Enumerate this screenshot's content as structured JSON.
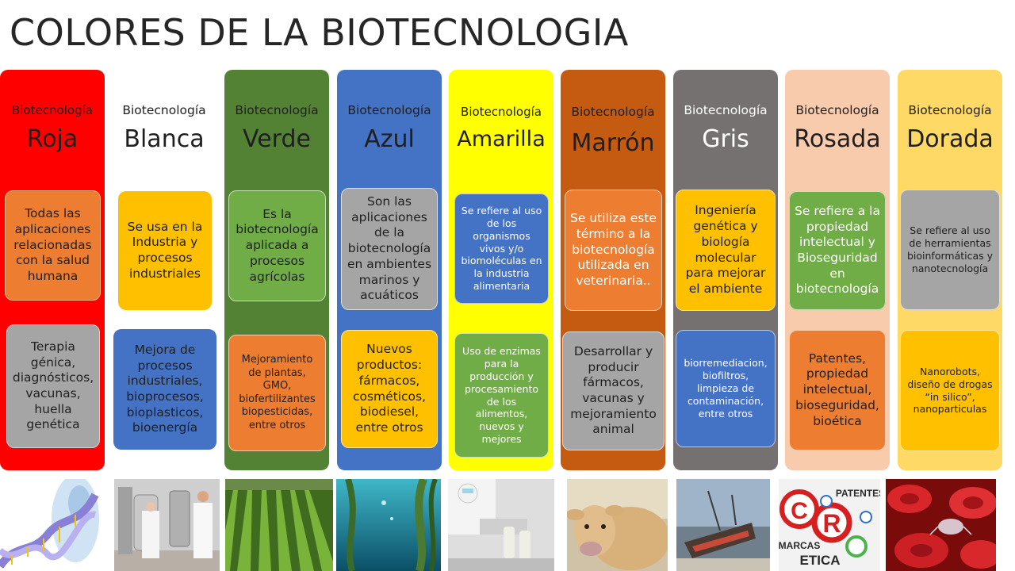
{
  "title": "COLORES DE LA BIOTECNOLOGIA",
  "colors": {
    "roja": "#ff0000",
    "blanca": "#ffffff",
    "verde": "#548235",
    "azul": "#4472c4",
    "amarilla": "#ffff00",
    "marron": "#c55a11",
    "gris": "#767171",
    "rosada": "#f8cbad",
    "dorada": "#ffd966",
    "box_orange": "#ed7d31",
    "box_gray": "#a5a5a5",
    "box_gold": "#ffc000",
    "box_blue": "#4472c4",
    "box_green": "#70ad47"
  },
  "columns": [
    {
      "subtitle": "Biotecnología",
      "name": "Roja",
      "box1": "Todas las aplicaciones relacionadas con la salud humana",
      "box2": "Terapia génica, diagnósticos, vacunas, huella genética",
      "image": "dna-human-body-image"
    },
    {
      "subtitle": "Biotecnología",
      "name": "Blanca",
      "box1": "Se usa en la Industria y procesos industriales",
      "box2": "Mejora de procesos industriales, bioprocesos, bioplasticos, bioenergía",
      "image": "industrial-lab-image"
    },
    {
      "subtitle": "Biotecnología",
      "name": "Verde",
      "box1": "Es la biotecnología aplicada a procesos agrícolas",
      "box2": "Mejoramiento de plantas, GMO, biofertilizantes biopesticidas, entre otros",
      "image": "crop-field-image"
    },
    {
      "subtitle": "Biotecnología",
      "name": "Azul",
      "box1": "Son las aplicaciones de la biotecnología en ambientes marinos y acuáticos",
      "box2": "Nuevos productos: fármacos, cosméticos, biodiesel, entre otros",
      "image": "kelp-forest-image"
    },
    {
      "subtitle": "Biotecnología",
      "name": "Amarilla",
      "box1": "Se refiere al uso de los organismos vivos y/o biomoléculas en la industria alimentaria",
      "box2": "Uso de enzimas para la producción y procesamiento de los alimentos, nuevos y mejores",
      "image": "food-lab-image"
    },
    {
      "subtitle": "Biotecnología",
      "name": "Marrón",
      "box1": "Se utiliza este término a la biotecnología utilizada en veterinaria..",
      "box2": "Desarrollar y producir fármacos, vacunas y mejoramiento animal",
      "image": "cow-image"
    },
    {
      "subtitle": "Biotecnología",
      "name": "Gris",
      "box1": "Ingeniería genética y biología molecular para mejorar el ambiente",
      "box2": "biorremediacion, biofiltros, limpieza de contaminación, entre otros",
      "image": "shipwreck-image"
    },
    {
      "subtitle": "Biotecnología",
      "name": "Rosada",
      "box1": "Se refiere a la propiedad intelectual y Bioseguridad en biotecnología",
      "box2": "Patentes, propiedad intelectual, bioseguridad, bioética",
      "image": "patents-image",
      "image_words": {
        "patentes": "PATENTES",
        "marcas": "MARCAS",
        "etica": "ETICA",
        "c": "C",
        "r": "R"
      }
    },
    {
      "subtitle": "Biotecnología",
      "name": "Dorada",
      "box1": "Se refiere al uso de herramientas bioinformáticas y nanotecnología",
      "box2": "Nanorobots, diseño de drogas “in silico”, nanoparticulas",
      "image": "blood-cells-nanorobot-image"
    }
  ]
}
